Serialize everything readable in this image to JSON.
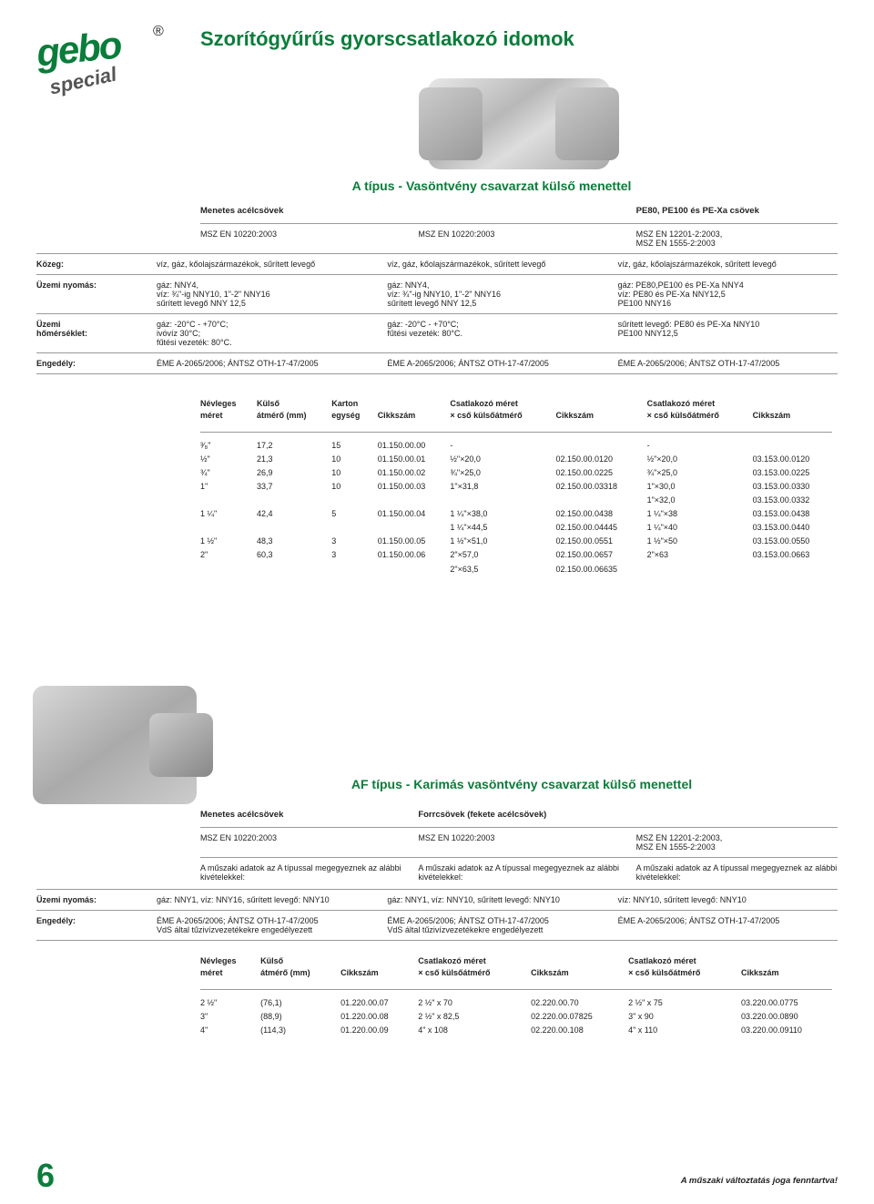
{
  "logo": {
    "brand": "gebo",
    "sub": "special",
    "reg": "®"
  },
  "page_title": "Szorítógyűrűs gyorscsatlakozó idomok",
  "sectionA": {
    "subtitle": "A típus - Vasöntvény csavarzat külső menettel",
    "col_headers": [
      "Menetes acélcsövek",
      "",
      "PE80, PE100 és PE-Xa csövek"
    ],
    "standards": [
      "MSZ EN 10220:2003",
      "MSZ EN 10220:2003",
      "MSZ EN 12201-2:2003,\nMSZ EN 1555-2:2003"
    ],
    "rows": [
      {
        "label": "Közeg:",
        "c1": "víz, gáz, kőolajszármazékok, sűrített levegő",
        "c2": "víz, gáz, kőolajszármazékok, sűrített levegő",
        "c3": "víz, gáz, kőolajszármazékok, sűrített levegő"
      },
      {
        "label": "Üzemi nyomás:",
        "c1": "gáz: NNY4,\nvíz: ¾\"-ig NNY10, 1\"-2\" NNY16\nsűrített levegő NNY 12,5",
        "c2": "gáz: NNY4,\nvíz: ¾\"-ig NNY10, 1\"-2\" NNY16\nsűrített levegő NNY 12,5",
        "c3": "gáz:        PE80,PE100 és PE-Xa NNY4\nvíz:        PE80 és PE-Xa NNY12,5\n            PE100 NNY16"
      },
      {
        "label": "Üzemi\nhőmérséklet:",
        "c1": "gáz: -20°C - +70°C;\nivóvíz 30°C;\nfűtési vezeték: 80°C.",
        "c2": "gáz: -20°C - +70°C;\nfűtési vezeték: 80°C.",
        "c3": "sűrített levegő: PE80 és PE-Xa NNY10\n                 PE100 NNY12,5"
      },
      {
        "label": "Engedély:",
        "c1": "ÉME A-2065/2006; ÁNTSZ OTH-17-47/2005",
        "c2": "ÉME A-2065/2006; ÁNTSZ OTH-17-47/2005",
        "c3": "ÉME A-2065/2006; ÁNTSZ OTH-17-47/2005"
      }
    ],
    "table": {
      "headers_left": [
        "Névleges\nméret",
        "Külső\nátmérő (mm)",
        "Karton\negység",
        "Cikkszám"
      ],
      "headers_mid": [
        "",
        "",
        "Csatlakozó méret\n× cső külsőátmérő",
        "Cikkszám"
      ],
      "headers_right": [
        "Csatlakozó méret\n× cső külsőátmérő",
        "Cikkszám"
      ],
      "rows": [
        [
          "³⁄₈\"",
          "17,2",
          "15",
          "01.150.00.00",
          "-",
          "",
          "-",
          ""
        ],
        [
          "½\"",
          "21,3",
          "10",
          "01.150.00.01",
          "½\"×20,0",
          "02.150.00.0120",
          "½\"×20,0",
          "03.153.00.0120"
        ],
        [
          "¾\"",
          "26,9",
          "10",
          "01.150.00.02",
          "¾\"×25,0",
          "02.150.00.0225",
          "¾\"×25,0",
          "03.153.00.0225"
        ],
        [
          "1\"",
          "33,7",
          "10",
          "01.150.00.03",
          "1\"×31,8",
          "02.150.00.03318",
          "1\"×30,0",
          "03.153.00.0330"
        ],
        [
          "",
          "",
          "",
          "",
          "",
          "",
          "1\"×32,0",
          "03.153.00.0332"
        ],
        [
          "1 ¼\"",
          "42,4",
          "5",
          "01.150.00.04",
          "1 ¼\"×38,0",
          "02.150.00.0438",
          "1 ¼\"×38",
          "03.153.00.0438"
        ],
        [
          "",
          "",
          "",
          "",
          "1 ¼\"×44,5",
          "02.150.00.04445",
          "1 ¼\"×40",
          "03.153.00.0440"
        ],
        [
          "1 ½\"",
          "48,3",
          "3",
          "01.150.00.05",
          "1 ½\"×51,0",
          "02.150.00.0551",
          "1 ½\"×50",
          "03.153.00.0550"
        ],
        [
          "2\"",
          "60,3",
          "3",
          "01.150.00.06",
          "2\"×57,0",
          "02.150.00.0657",
          "2\"×63",
          "03.153.00.0663"
        ],
        [
          "",
          "",
          "",
          "",
          "2\"×63,5",
          "02.150.00.06635",
          "",
          ""
        ]
      ]
    }
  },
  "sectionAF": {
    "subtitle": "AF típus - Karimás vasöntvény csavarzat külső menettel",
    "cols": [
      {
        "hdr": "Menetes acélcsövek",
        "std": "MSZ EN 10220:2003",
        "note": "A műszaki adatok az A típussal megegyeznek az alábbi kivételekkel:"
      },
      {
        "hdr": "Forrcsövek (fekete acélcsövek)",
        "std": "MSZ EN 10220:2003",
        "note": "A műszaki adatok az A típussal megegyeznek az alábbi kivételekkel:"
      },
      {
        "hdr": "",
        "std": "MSZ EN 12201-2:2003,\nMSZ EN 1555-2:2003",
        "note": "A műszaki adatok az A típussal megegyeznek az alábbi kivételekkel:"
      }
    ],
    "rows": [
      {
        "label": "Üzemi nyomás:",
        "c1": "gáz: NNY1, víz: NNY16, sűrített levegő: NNY10",
        "c2": "gáz: NNY1, víz: NNY10, sűrített levegő: NNY10",
        "c3": "víz: NNY10, sűrített levegő: NNY10"
      },
      {
        "label": "Engedély:",
        "c1": "ÉME A-2065/2006; ÁNTSZ OTH-17-47/2005\nVdS által tűzivízvezetékekre engedélyezett",
        "c2": "ÉME A-2065/2006; ÁNTSZ OTH-17-47/2005\nVdS által tűzivízvezetékekre engedélyezett",
        "c3": "ÉME A-2065/2006; ÁNTSZ OTH-17-47/2005"
      }
    ],
    "table": {
      "headers": [
        "Névleges\nméret",
        "Külső\nátmérő (mm)",
        "Cikkszám",
        "Csatlakozó méret\n× cső külsőátmérő",
        "Cikkszám",
        "Csatlakozó méret\n× cső külsőátmérő",
        "Cikkszám"
      ],
      "rows": [
        [
          "2 ½\"",
          "(76,1)",
          "01.220.00.07",
          "2 ½\" x 70",
          "02.220.00.70",
          "2 ½\" x 75",
          "03.220.00.0775"
        ],
        [
          "3\"",
          "(88,9)",
          "01.220.00.08",
          "2 ½\" x 82,5",
          "02.220.00.07825",
          "3\" x 90",
          "03.220.00.0890"
        ],
        [
          "4\"",
          "(114,3)",
          "01.220.00.09",
          "4\" x 108",
          "02.220.00.108",
          "4\" x 110",
          "03.220.00.09110"
        ]
      ]
    }
  },
  "page_number": "6",
  "footnote": "A műszaki változtatás joga fenntartva!"
}
